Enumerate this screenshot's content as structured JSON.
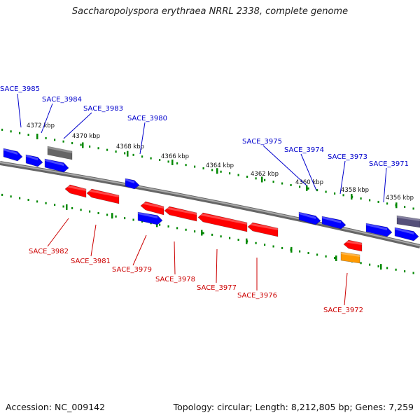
{
  "title": "Saccharopolyspora erythraea NRRL 2338, complete genome",
  "footer": {
    "accession": "Accession: NC_009142",
    "summary": "Topology: circular; Length: 8,212,805 bp; Genes: 7,259"
  },
  "colors": {
    "forward_gene": "#0000ff",
    "reverse_gene": "#ff0000",
    "forward_label": "#0000cc",
    "reverse_label": "#cc0000",
    "backbone": "#888888",
    "tick": "#008800",
    "grey_feature": "#666666",
    "orange_feature": "#ff9900",
    "slate_feature": "#55507a"
  },
  "kbp_labels": [
    "4372 kbp",
    "4370 kbp",
    "4368 kbp",
    "4366 kbp",
    "4364 kbp",
    "4362 kbp",
    "4360 kbp",
    "4358 kbp",
    "4356 kbp"
  ],
  "genes": [
    {
      "name": "SACE_3985",
      "strand": "forward"
    },
    {
      "name": "SACE_3984",
      "strand": "forward"
    },
    {
      "name": "SACE_3983",
      "strand": "forward"
    },
    {
      "name": "SACE_3980",
      "strand": "forward"
    },
    {
      "name": "SACE_3975",
      "strand": "forward"
    },
    {
      "name": "SACE_3974",
      "strand": "forward"
    },
    {
      "name": "SACE_3973",
      "strand": "forward"
    },
    {
      "name": "SACE_3971",
      "strand": "forward"
    },
    {
      "name": "SACE_3982",
      "strand": "reverse"
    },
    {
      "name": "SACE_3981",
      "strand": "reverse"
    },
    {
      "name": "SACE_3979",
      "strand": "reverse"
    },
    {
      "name": "SACE_3978",
      "strand": "reverse"
    },
    {
      "name": "SACE_3977",
      "strand": "reverse"
    },
    {
      "name": "SACE_3976",
      "strand": "reverse"
    },
    {
      "name": "SACE_3972",
      "strand": "reverse"
    }
  ]
}
